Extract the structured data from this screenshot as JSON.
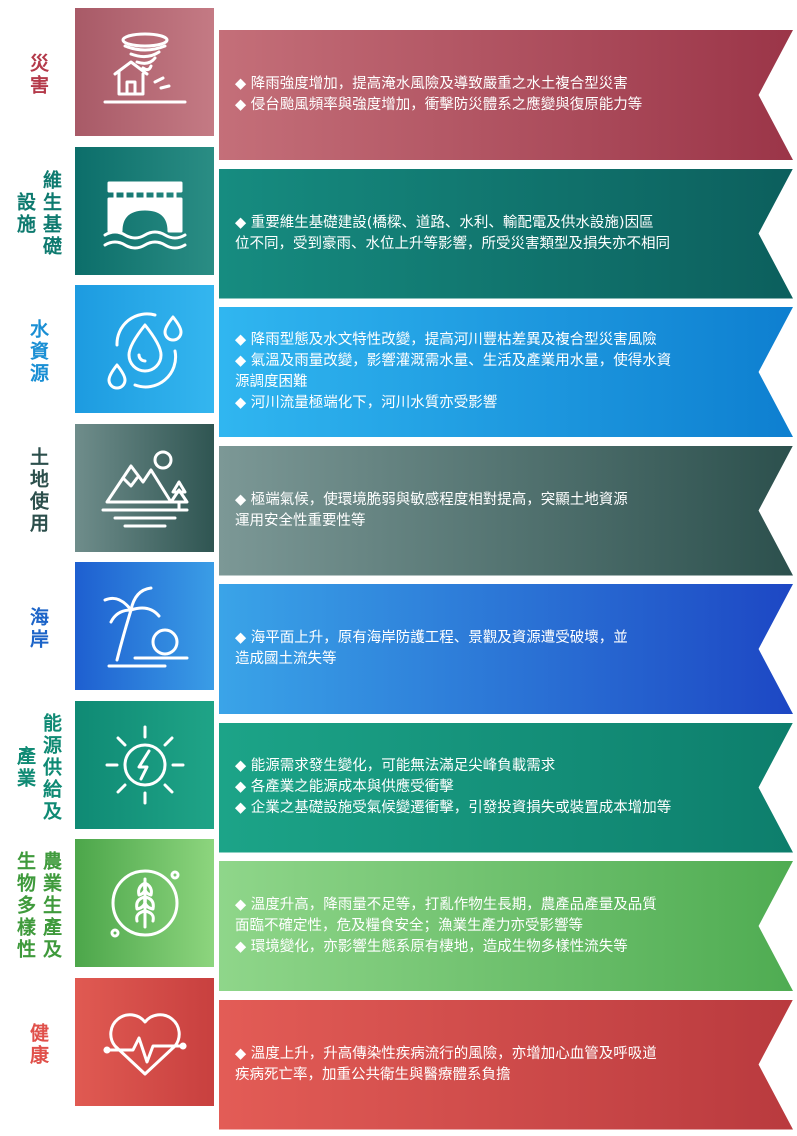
{
  "rows": [
    {
      "id": "disaster",
      "label_cols": [
        "災害"
      ],
      "label_color": "#b43a4a",
      "icon": "tornado-house-icon",
      "icon_grad": [
        "#a85a67",
        "#c47a84"
      ],
      "banner_grad": [
        "#c46f79",
        "#9b3548"
      ],
      "lines": [
        "◆ 降雨強度增加，提高淹水風險及導致嚴重之水土複合型災害",
        "◆ 侵台颱風頻率與強度增加，衝擊防災體系之應變與復原能力等"
      ]
    },
    {
      "id": "infrastructure",
      "label_cols": [
        "維生基礎",
        "設施"
      ],
      "label_color": "#0e7a6f",
      "icon": "bridge-icon",
      "icon_grad": [
        "#0c6e6a",
        "#2a8d84"
      ],
      "banner_grad": [
        "#168c80",
        "#0c5f5d"
      ],
      "lines": [
        "◆ 重要維生基礎建設(橋樑、道路、水利、輸配電及供水設施)因區",
        "位不同，受到豪雨、水位上升等影響，所受災害類型及損失亦不相同"
      ]
    },
    {
      "id": "water",
      "label_cols": [
        "水資源"
      ],
      "label_color": "#1a8fd4",
      "icon": "water-drops-icon",
      "icon_grad": [
        "#1d9be0",
        "#34b6ef"
      ],
      "banner_grad": [
        "#30b6f0",
        "#0e7fd0"
      ],
      "lines": [
        "◆ 降雨型態及水文特性改變，提高河川豐枯差異及複合型災害風險",
        "◆ 氣溫及雨量改變，影響灌溉需水量、生活及產業用水量，使得水資",
        "源調度困難",
        "◆ 河川流量極端化下，河川水質亦受影響"
      ]
    },
    {
      "id": "land",
      "label_cols": [
        "土地使用"
      ],
      "label_color": "#2c4f4c",
      "icon": "mountain-icon",
      "icon_grad": [
        "#6f8d8b",
        "#2f5552"
      ],
      "banner_grad": [
        "#7c9896",
        "#2c504d"
      ],
      "lines": [
        "◆ 極端氣候，使環境脆弱與敏感程度相對提高，突顯土地資源",
        "運用安全性重要性等"
      ]
    },
    {
      "id": "coast",
      "label_cols": [
        "海岸"
      ],
      "label_color": "#1c64c8",
      "icon": "palm-beach-icon",
      "icon_grad": [
        "#1e5fd0",
        "#3a9de6"
      ],
      "banner_grad": [
        "#3aa4e8",
        "#1d47c4"
      ],
      "lines": [
        "◆ 海平面上升，原有海岸防護工程、景觀及資源遭受破壞，並",
        "造成國土流失等"
      ]
    },
    {
      "id": "energy",
      "label_cols": [
        "能源供給及",
        "產業"
      ],
      "label_color": "#0f8a74",
      "icon": "energy-icon",
      "icon_grad": [
        "#0f8a74",
        "#1fa487"
      ],
      "banner_grad": [
        "#1ca488",
        "#0d7e6c"
      ],
      "lines": [
        "◆ 能源需求發生變化，可能無法滿足尖峰負載需求",
        "◆ 各產業之能源成本與供應受衝擊",
        "◆ 企業之基礎設施受氣候變遷衝擊，引發投資損失或裝置成本增加等"
      ]
    },
    {
      "id": "agri",
      "label_cols": [
        "農業生產及",
        "生物多樣性"
      ],
      "label_color": "#3f9a3c",
      "icon": "wheat-icon",
      "icon_grad": [
        "#4ca64a",
        "#8dd57e"
      ],
      "banner_grad": [
        "#8fd68a",
        "#4fac52"
      ],
      "lines": [
        "◆ 溫度升高，降雨量不足等，打亂作物生長期，農產品產量及品質",
        "面臨不確定性，危及糧食安全；漁業生產力亦受影響等",
        "◆ 環境變化，亦影響生態系原有棲地，造成生物多樣性流失等"
      ]
    },
    {
      "id": "health",
      "label_cols": [
        "健康"
      ],
      "label_color": "#e0504a",
      "icon": "heart-pulse-icon",
      "icon_grad": [
        "#e05a52",
        "#c8403f"
      ],
      "banner_grad": [
        "#e35c56",
        "#b93a3e"
      ],
      "lines": [
        "◆ 溫度上升，升高傳染性疾病流行的風險，亦增加心血管及呼吸道",
        "疾病死亡率，加重公共衛生與醫療體系負擔"
      ]
    }
  ]
}
